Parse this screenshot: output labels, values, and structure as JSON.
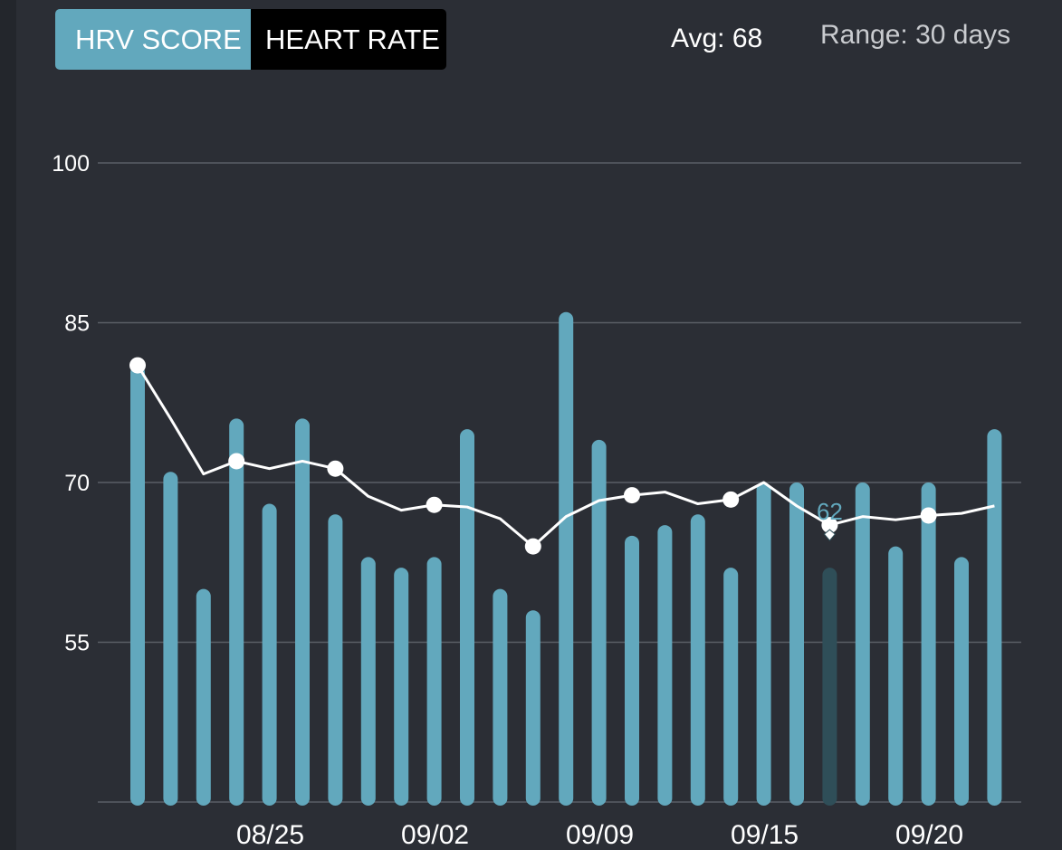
{
  "toggle": {
    "active_label": "HRV SCORE",
    "inactive_label": "HEART RATE"
  },
  "stats": {
    "avg": "Avg: 68",
    "range": "Range: 30 days"
  },
  "colors": {
    "background": "#2b2e35",
    "bar": "#62a8bd",
    "bar_selected": "#2f4e58",
    "line": "#ffffff",
    "grid": "#5b5f66",
    "active_tab": "#62a8bd",
    "inactive_tab": "#000000"
  },
  "chart_data": {
    "type": "bar",
    "title": "",
    "xlabel": "",
    "ylabel": "",
    "ylim": [
      40,
      100
    ],
    "yticks": [
      55,
      70,
      85,
      100
    ],
    "x_tick_labels": [
      {
        "index": 4,
        "label": "08/25"
      },
      {
        "index": 9,
        "label": "09/02"
      },
      {
        "index": 14,
        "label": "09/09"
      },
      {
        "index": 19,
        "label": "09/15"
      },
      {
        "index": 24,
        "label": "09/20"
      }
    ],
    "series": [
      {
        "type": "bar",
        "values": [
          81,
          71,
          60,
          76,
          68,
          76,
          67,
          63,
          62,
          63,
          75,
          60,
          58,
          86,
          74,
          65,
          66,
          67,
          62,
          70,
          70,
          62,
          70,
          64,
          70,
          63,
          75
        ]
      },
      {
        "type": "line",
        "values": [
          81,
          76,
          70.8,
          72,
          71.3,
          72,
          71.3,
          68.7,
          67.4,
          67.9,
          67.7,
          66.6,
          64,
          66.8,
          68.3,
          68.8,
          69.1,
          68,
          68.4,
          70,
          67.8,
          66,
          66.8,
          66.5,
          66.9,
          67.1,
          67.8
        ],
        "markers_at": [
          0,
          3,
          6,
          9,
          12,
          15,
          18,
          21,
          24
        ]
      }
    ],
    "selected": {
      "index": 21,
      "label": "62"
    },
    "grid": true,
    "legend": "none"
  }
}
